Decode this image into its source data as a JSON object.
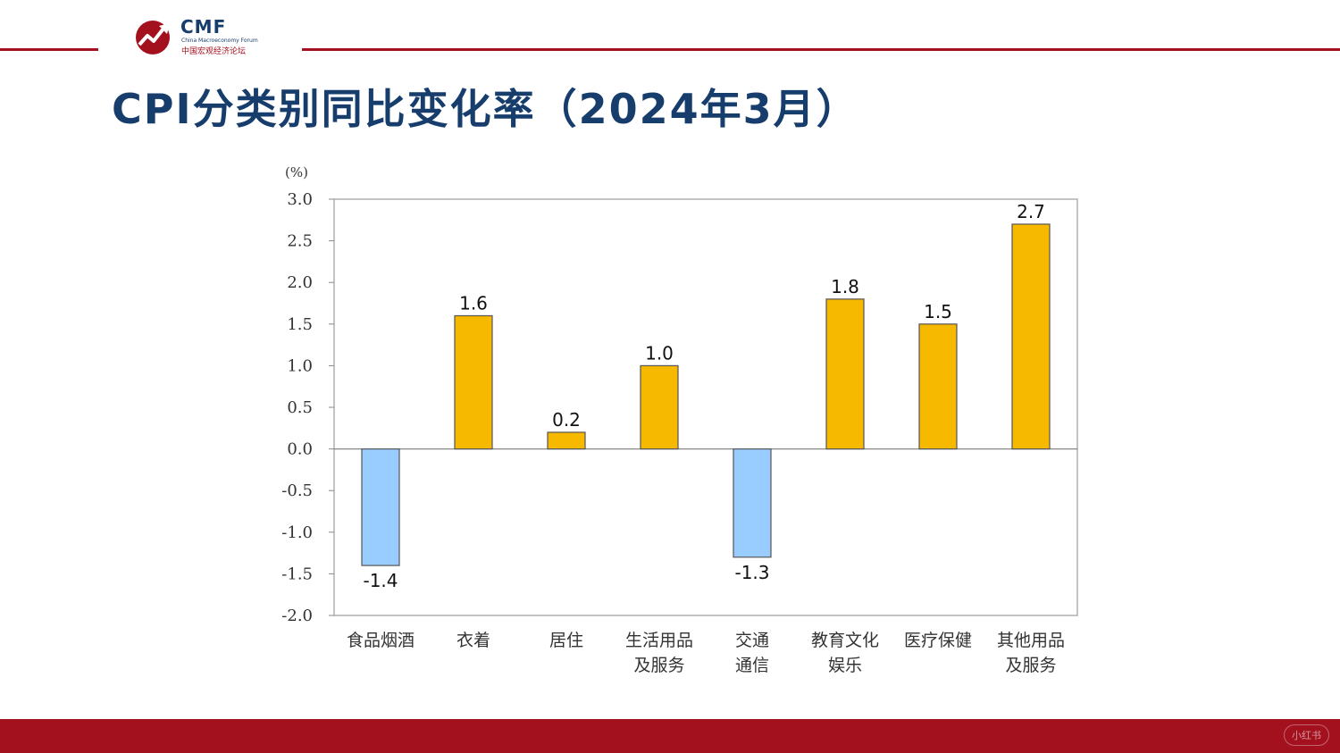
{
  "header": {
    "logo_text": "CMF",
    "logo_en": "China Macroeconomy Forum",
    "logo_zh": "中国宏观经济论坛",
    "title": "CPI分类别同比变化率（2024年3月）"
  },
  "colors": {
    "brand_red": "#a3111f",
    "title_blue": "#163d6b",
    "positive_bar": "#f7b800",
    "negative_bar": "#99ccff"
  },
  "footer": {
    "watermark": "小红书"
  },
  "chart_data": {
    "type": "bar",
    "title": "",
    "unit_label": "(%)",
    "xlabel": "",
    "ylabel": "",
    "ylim": [
      -2.0,
      3.0
    ],
    "yticks": [
      "3.0",
      "2.5",
      "2.0",
      "1.5",
      "1.0",
      "0.5",
      "0.0",
      "-0.5",
      "-1.0",
      "-1.5",
      "-2.0"
    ],
    "categories": [
      [
        "食品烟酒"
      ],
      [
        "衣着"
      ],
      [
        "居住"
      ],
      [
        "生活用品",
        "及服务"
      ],
      [
        "交通",
        "通信"
      ],
      [
        "教育文化",
        "娱乐"
      ],
      [
        "医疗保健"
      ],
      [
        "其他用品",
        "及服务"
      ]
    ],
    "values": [
      -1.4,
      1.6,
      0.2,
      1.0,
      -1.3,
      1.8,
      1.5,
      2.7
    ],
    "value_labels": [
      "-1.4",
      "1.6",
      "0.2",
      "1.0",
      "-1.3",
      "1.8",
      "1.5",
      "2.7"
    ],
    "grid": false,
    "legend": "none"
  }
}
